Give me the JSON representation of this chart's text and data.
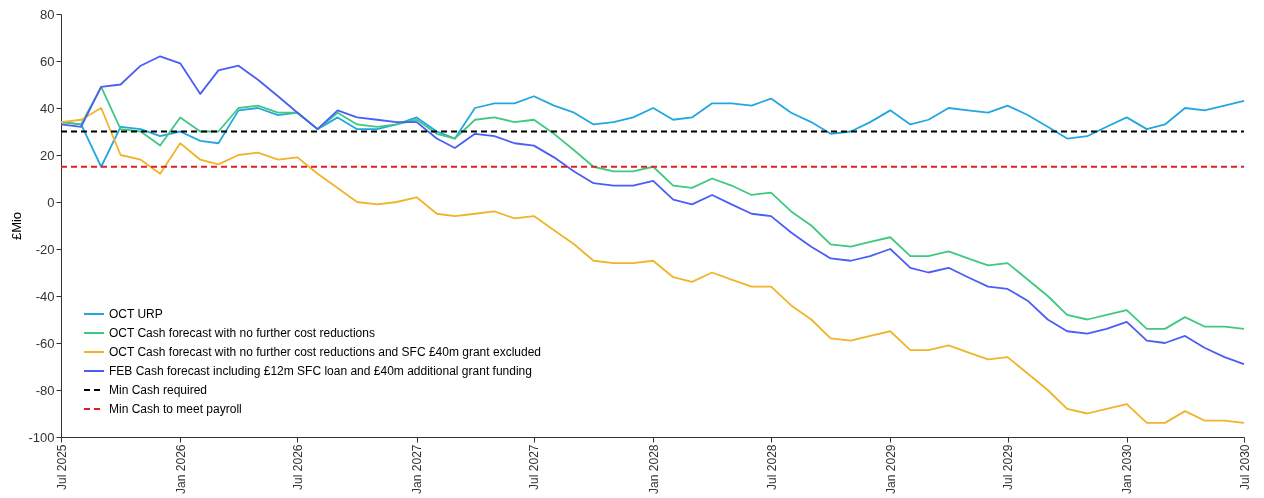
{
  "chart_data": {
    "type": "line",
    "ylabel": "£Mio",
    "x": [
      "2025-07",
      "2025-08",
      "2025-09",
      "2025-10",
      "2025-11",
      "2025-12",
      "2026-01",
      "2026-02",
      "2026-03",
      "2026-04",
      "2026-05",
      "2026-06",
      "2026-07",
      "2026-08",
      "2026-09",
      "2026-10",
      "2026-11",
      "2026-12",
      "2027-01",
      "2027-02",
      "2027-03",
      "2027-04",
      "2027-05",
      "2027-06",
      "2027-07",
      "2027-08",
      "2027-09",
      "2027-10",
      "2027-11",
      "2027-12",
      "2028-01",
      "2028-02",
      "2028-03",
      "2028-04",
      "2028-05",
      "2028-06",
      "2028-07",
      "2028-08",
      "2028-09",
      "2028-10",
      "2028-11",
      "2028-12",
      "2029-01",
      "2029-02",
      "2029-03",
      "2029-04",
      "2029-05",
      "2029-06",
      "2029-07",
      "2029-08",
      "2029-09",
      "2029-10",
      "2029-11",
      "2029-12",
      "2030-01",
      "2030-02",
      "2030-03",
      "2030-04",
      "2030-05",
      "2030-06",
      "2030-07"
    ],
    "series": [
      {
        "name": "OCT URP",
        "color": "#22a7e0",
        "values": [
          34,
          33,
          15,
          32,
          31,
          28,
          30,
          26,
          25,
          39,
          40,
          37,
          38,
          31,
          36,
          31,
          31,
          33,
          36,
          30,
          27,
          40,
          42,
          42,
          45,
          41,
          38,
          33,
          34,
          36,
          40,
          35,
          36,
          42,
          42,
          41,
          44,
          38,
          34,
          29,
          30,
          34,
          39,
          33,
          35,
          40,
          39,
          38,
          41,
          37,
          32,
          27,
          28,
          32,
          36,
          31,
          33,
          40,
          39,
          41,
          43
        ]
      },
      {
        "name": "OCT Cash forecast with no further cost reductions",
        "color": "#40c880",
        "values": [
          34,
          33,
          49,
          31,
          30,
          24,
          36,
          30,
          30,
          40,
          41,
          38,
          38,
          31,
          38,
          33,
          32,
          33,
          35,
          29,
          27,
          35,
          36,
          34,
          35,
          29,
          22,
          15,
          13,
          13,
          15,
          7,
          6,
          10,
          7,
          3,
          4,
          -4,
          -10,
          -18,
          -19,
          -17,
          -15,
          -23,
          -23,
          -21,
          -24,
          -27,
          -26,
          -33,
          -40,
          -48,
          -50,
          -48,
          -46,
          -54,
          -54,
          -49,
          -53,
          -53,
          -54
        ]
      },
      {
        "name": "OCT Cash forecast with no further cost reductions and SFC £40m grant excluded",
        "color": "#f0b429",
        "values": [
          34,
          35,
          40,
          20,
          18,
          12,
          25,
          18,
          16,
          20,
          21,
          18,
          19,
          12,
          6,
          0,
          -1,
          0,
          2,
          -5,
          -6,
          -5,
          -4,
          -7,
          -6,
          -12,
          -18,
          -25,
          -26,
          -26,
          -25,
          -32,
          -34,
          -30,
          -33,
          -36,
          -36,
          -44,
          -50,
          -58,
          -59,
          -57,
          -55,
          -63,
          -63,
          -61,
          -64,
          -67,
          -66,
          -73,
          -80,
          -88,
          -90,
          -88,
          -86,
          -94,
          -94,
          -89,
          -93,
          -93,
          -94
        ]
      },
      {
        "name": "FEB Cash forecast including £12m SFC loan and £40m additional grant funding",
        "color": "#4a5ef5",
        "values": [
          33,
          32,
          49,
          50,
          58,
          62,
          59,
          46,
          56,
          58,
          52,
          45,
          38,
          31,
          39,
          36,
          35,
          34,
          34,
          27,
          23,
          29,
          28,
          25,
          24,
          19,
          13,
          8,
          7,
          7,
          9,
          1,
          -1,
          3,
          -1,
          -5,
          -6,
          -13,
          -19,
          -24,
          -25,
          -23,
          -20,
          -28,
          -30,
          -28,
          -32,
          -36,
          -37,
          -42,
          -50,
          -55,
          -56,
          -54,
          -51,
          -59,
          -60,
          -57,
          -62,
          -66,
          -69
        ]
      }
    ],
    "ref_lines": [
      {
        "axis": "y",
        "value": 30,
        "label": "Min Cash required",
        "color": "#000000",
        "line_style": "dashed"
      },
      {
        "axis": "y",
        "value": 15,
        "label": "Min Cash to meet payroll",
        "color": "#e02020",
        "line_style": "dashed"
      }
    ],
    "xlim": [
      "2025-07",
      "2030-07"
    ],
    "xticks": [
      {
        "value": "2025-07",
        "label": "Jul 2025"
      },
      {
        "value": "2026-01",
        "label": "Jan 2026"
      },
      {
        "value": "2026-07",
        "label": "Jul 2026"
      },
      {
        "value": "2027-01",
        "label": "Jan 2027"
      },
      {
        "value": "2027-07",
        "label": "Jul 2027"
      },
      {
        "value": "2028-01",
        "label": "Jan 2028"
      },
      {
        "value": "2028-07",
        "label": "Jul 2028"
      },
      {
        "value": "2029-01",
        "label": "Jan 2029"
      },
      {
        "value": "2029-07",
        "label": "Jul 2029"
      },
      {
        "value": "2030-01",
        "label": "Jan 2030"
      },
      {
        "value": "2030-07",
        "label": "Jul 2030"
      }
    ],
    "ylim": [
      -100,
      80
    ],
    "yticks": [
      -100,
      -80,
      -60,
      -40,
      -20,
      0,
      20,
      40,
      60,
      80
    ],
    "grid": false,
    "legend": "bottom left",
    "marker": "none",
    "line_style": "solid"
  }
}
